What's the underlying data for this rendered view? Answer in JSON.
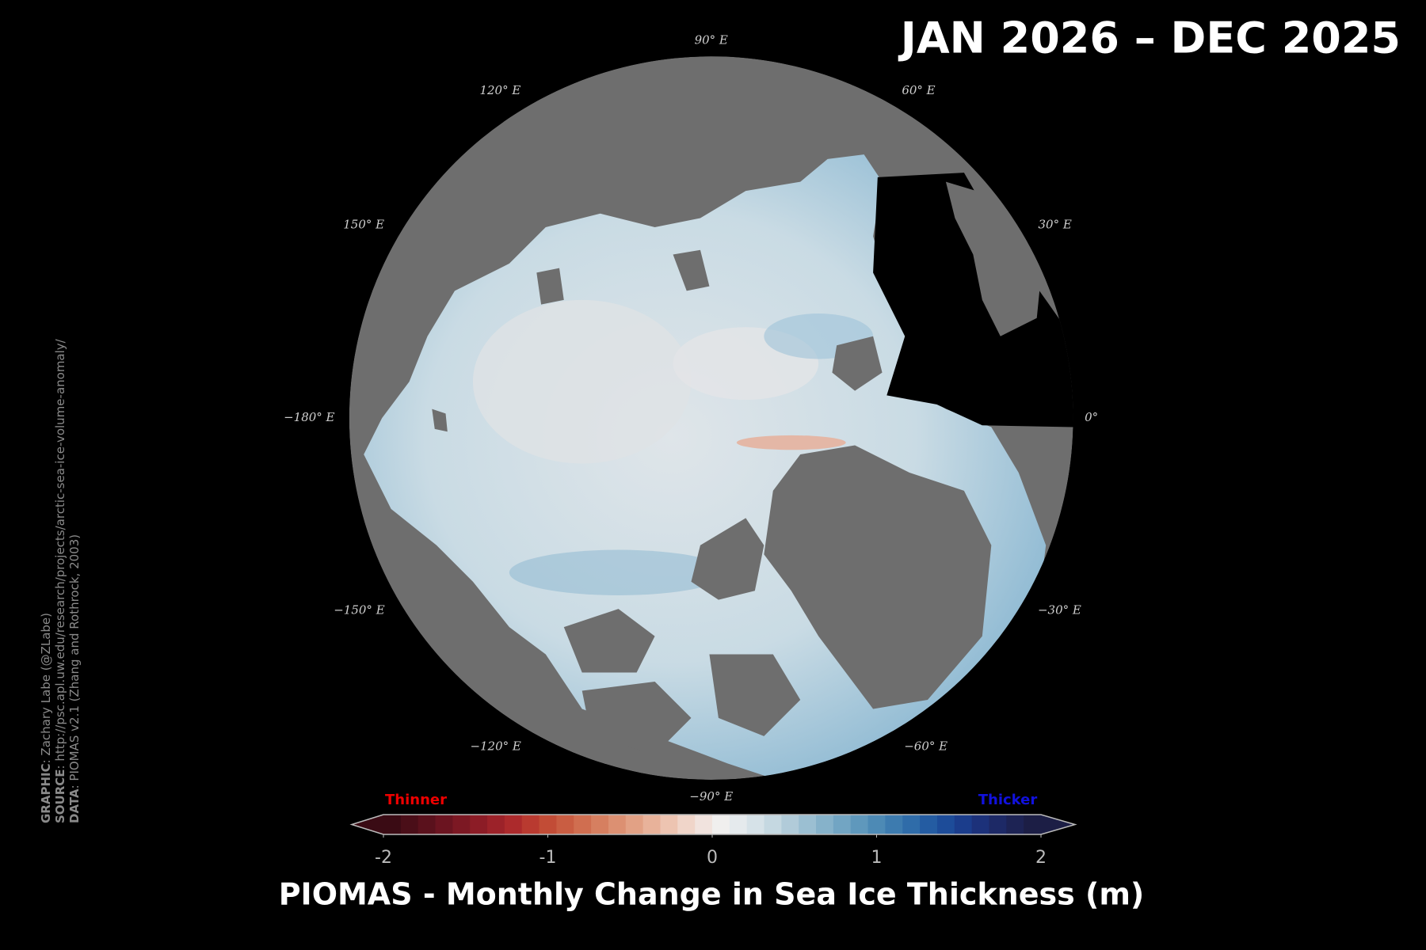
{
  "title": "JAN 2026 – DEC 2025",
  "map": {
    "longitude_labels": [
      "90° E",
      "120° E",
      "60° E",
      "150° E",
      "30° E",
      "−180° E",
      "0°",
      "−150° E",
      "−30° E",
      "−120° E",
      "−60° E",
      "−90° E"
    ]
  },
  "colorbar": {
    "label": "PIOMAS - Monthly Change in Sea Ice Thickness (m)",
    "low_label": "Thinner",
    "high_label": "Thicker",
    "lim": [
      -2,
      2
    ],
    "ticks": [
      -2,
      -1,
      0,
      1,
      2
    ],
    "colors": [
      "#3a0b14",
      "#4a0e18",
      "#5a111c",
      "#6b1420",
      "#7c1823",
      "#8c1c26",
      "#9c2229",
      "#ac2a2c",
      "#b93a30",
      "#c24c36",
      "#c95d42",
      "#d06e50",
      "#d67f60",
      "#dc9072",
      "#e2a185",
      "#e8b29a",
      "#edc4b1",
      "#f0d5c9",
      "#f1e3de",
      "#f0efee",
      "#e5eaed",
      "#d6e2e8",
      "#c5d8e1",
      "#b1cbd9",
      "#9bbfd2",
      "#86b2ca",
      "#72a5c3",
      "#5f98bc",
      "#4d8ab5",
      "#3d7baf",
      "#2f6ca9",
      "#245ca2",
      "#1d4c99",
      "#1b3d8c",
      "#1c317a",
      "#1d2966",
      "#1d2354",
      "#1c1e45"
    ]
  },
  "credits": [
    {
      "label": "GRAPHIC",
      "text": ": Zachary Labe (@ZLabe)"
    },
    {
      "label": "SOURCE",
      "text": ": http://psc.apl.uw.edu/research/projects/arctic-sea-ice-volume-anomaly/"
    },
    {
      "label": "DATA",
      "text": ": PIOMAS v2.1 (Zhang and Rothrock, 2003)"
    }
  ]
}
